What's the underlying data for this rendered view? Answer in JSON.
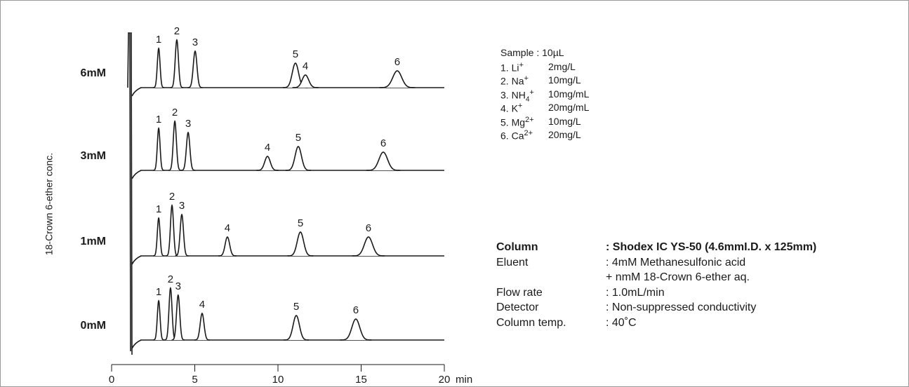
{
  "chart_data": {
    "type": "chromatogram",
    "y_label": "18-Crown 6-ether conc.",
    "x_unit": "min",
    "xlim": [
      0,
      20
    ],
    "xticks": [
      0,
      5,
      10,
      15,
      20
    ],
    "color": "#1a1a1a",
    "traces": [
      {
        "name": "6mM",
        "peaks": [
          {
            "label": "1",
            "time": 2.83,
            "height": 56
          },
          {
            "label": "2",
            "time": 3.92,
            "height": 68
          },
          {
            "label": "3",
            "time": 5.02,
            "height": 52
          },
          {
            "label": "5",
            "time": 11.05,
            "height": 35
          },
          {
            "label": "4",
            "time": 11.65,
            "height": 18
          },
          {
            "label": "6",
            "time": 17.17,
            "height": 24
          }
        ]
      },
      {
        "name": "3mM",
        "peaks": [
          {
            "label": "1",
            "time": 2.83,
            "height": 60
          },
          {
            "label": "2",
            "time": 3.8,
            "height": 70
          },
          {
            "label": "3",
            "time": 4.6,
            "height": 54
          },
          {
            "label": "4",
            "time": 9.37,
            "height": 20
          },
          {
            "label": "5",
            "time": 11.22,
            "height": 34
          },
          {
            "label": "6",
            "time": 16.33,
            "height": 26
          }
        ]
      },
      {
        "name": "1mM",
        "peaks": [
          {
            "label": "1",
            "time": 2.83,
            "height": 54
          },
          {
            "label": "2",
            "time": 3.63,
            "height": 72
          },
          {
            "label": "3",
            "time": 4.22,
            "height": 59
          },
          {
            "label": "4",
            "time": 6.96,
            "height": 27
          },
          {
            "label": "5",
            "time": 11.35,
            "height": 34
          },
          {
            "label": "6",
            "time": 15.44,
            "height": 27
          }
        ]
      },
      {
        "name": "0mM",
        "peaks": [
          {
            "label": "1",
            "time": 2.83,
            "height": 56
          },
          {
            "label": "2",
            "time": 3.54,
            "height": 74
          },
          {
            "label": "3",
            "time": 4.0,
            "height": 64
          },
          {
            "label": "4",
            "time": 5.44,
            "height": 38
          },
          {
            "label": "5",
            "time": 11.1,
            "height": 35
          },
          {
            "label": "6",
            "time": 14.68,
            "height": 30
          }
        ]
      }
    ]
  },
  "sample": {
    "title": "Sample : 10µL",
    "items": [
      {
        "num": "1.",
        "ion": "Li",
        "sub": "",
        "charge": "+",
        "conc": "2mg/L"
      },
      {
        "num": "2.",
        "ion": "Na",
        "sub": "",
        "charge": "+",
        "conc": "10mg/L"
      },
      {
        "num": "3.",
        "ion": "NH",
        "sub": "4",
        "charge": "+",
        "conc": "10mg/mL"
      },
      {
        "num": "4.",
        "ion": "K",
        "sub": "",
        "charge": "+",
        "conc": "20mg/mL"
      },
      {
        "num": "5.",
        "ion": "Mg",
        "sub": "",
        "charge": "2+",
        "conc": "10mg/L"
      },
      {
        "num": "6.",
        "ion": "Ca",
        "sub": "",
        "charge": "2+",
        "conc": "20mg/L"
      }
    ]
  },
  "conditions": [
    {
      "key": "Column",
      "value": ": Shodex IC YS-50 (4.6mmI.D. x 125mm)"
    },
    {
      "key": "Eluent",
      "value": ": 4mM Methanesulfonic acid"
    },
    {
      "key": "",
      "value": "+ nmM 18-Crown 6-ether aq."
    },
    {
      "key": "Flow rate",
      "value": ": 1.0mL/min"
    },
    {
      "key": "Detector",
      "value": ": Non-suppressed conductivity"
    },
    {
      "key": "Column temp.",
      "value": ": 40˚C"
    }
  ]
}
